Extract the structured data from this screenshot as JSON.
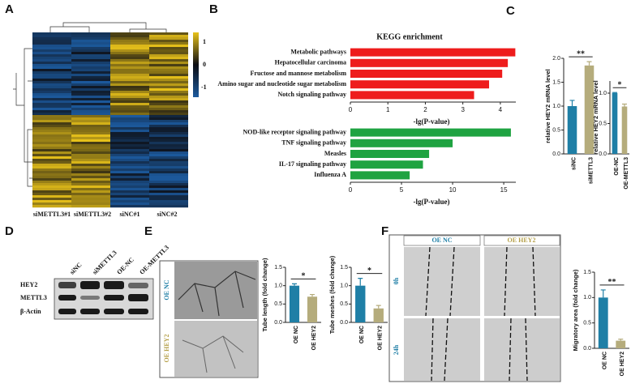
{
  "panels": [
    "A",
    "B",
    "C",
    "D",
    "E",
    "F"
  ],
  "heatmap": {
    "columns": [
      "siMETTL3#1",
      "siMETTL3#2",
      "siNC#1",
      "siNC#2"
    ],
    "colorbar_ticks": [
      1,
      0,
      -1
    ]
  },
  "blot": {
    "lanes": [
      "siNC",
      "siMETTL3",
      "OE-NC",
      "OE-METTL3"
    ],
    "proteins": [
      "HEY2",
      "METTL3",
      "β-Actin"
    ]
  },
  "tube_images": {
    "labels": [
      "OE NC",
      "OE HEY2"
    ]
  },
  "wound": {
    "columns": [
      "OE NC",
      "OE HEY2"
    ],
    "rows": [
      "0h",
      "24h"
    ]
  },
  "chart_data": [
    {
      "type": "hbar",
      "title": "KEGG enrichment",
      "categories": [
        "Metabolic pathways",
        "Hepatocellular carcinoma",
        "Fructose and mannose metabolism",
        "Amino sugar and nucleotide sugar metabolism",
        "Notch signaling pathway"
      ],
      "values": [
        4.4,
        4.2,
        4.05,
        3.7,
        3.3
      ],
      "color": "#ee1c1c",
      "xlim": [
        0,
        4.5
      ],
      "xticks": [
        0,
        1,
        2,
        3,
        4
      ],
      "x_label": "-lg(P-value)"
    },
    {
      "type": "hbar",
      "categories": [
        "NOD-like receptor signaling pathway",
        "TNF signaling pathway",
        "Measles",
        "IL-17 signaling pathway",
        "Influenza A"
      ],
      "values": [
        15.7,
        10,
        7.7,
        7.1,
        5.8
      ],
      "color": "#1fa341",
      "xlim": [
        0,
        16.5
      ],
      "xticks": [
        0,
        5,
        10,
        15
      ],
      "x_label": "-lg(P-value)"
    },
    {
      "type": "bar",
      "y_label": "relative HEY2 mRNA level",
      "categories": [
        "siNC",
        "siMETTL3"
      ],
      "values": [
        1.0,
        1.85
      ],
      "errors": [
        0.12,
        0.08
      ],
      "colors": [
        "#1f7fa6",
        "#b5ac7c"
      ],
      "ylim": [
        0,
        2.0
      ],
      "yticks": [
        {
          "value": 0,
          "label": "0.0"
        },
        0.5,
        {
          "value": 1,
          "label": "1.0"
        },
        1.5,
        {
          "value": 2,
          "label": "2.0"
        }
      ],
      "annotation": "**"
    },
    {
      "type": "bar",
      "y_label": "relative HEY2 mRNA level",
      "categories": [
        "OE-NC",
        "OE-METTL3"
      ],
      "values": [
        1.0,
        0.78
      ],
      "errors": [
        0.01,
        0.04
      ],
      "colors": [
        "#1f7fa6",
        "#b5ac7c"
      ],
      "ylim": [
        0,
        1.2
      ],
      "yticks": [
        {
          "value": 0,
          "label": "0.0"
        },
        0.5,
        {
          "value": 1,
          "label": "1.0"
        }
      ],
      "annotation": "*"
    },
    {
      "type": "bar",
      "y_label": "Tube length (fold change)",
      "categories": [
        "OE NC",
        "OE HEY2"
      ],
      "values": [
        1.0,
        0.7
      ],
      "errors": [
        0.05,
        0.06
      ],
      "colors": [
        "#1f7fa6",
        "#b5ac7c"
      ],
      "ylim": [
        0,
        1.5
      ],
      "yticks": [
        {
          "value": 0,
          "label": "0.0"
        },
        0.5,
        {
          "value": 1,
          "label": "1.0"
        },
        1.5
      ],
      "annotation": "*"
    },
    {
      "type": "bar",
      "y_label": "Tube meshes (fold change)",
      "categories": [
        "OE NC",
        "OE HEY2"
      ],
      "values": [
        1.0,
        0.38
      ],
      "errors": [
        0.2,
        0.08
      ],
      "colors": [
        "#1f7fa6",
        "#b5ac7c"
      ],
      "ylim": [
        0,
        1.5
      ],
      "yticks": [
        {
          "value": 0,
          "label": "0.0"
        },
        0.5,
        {
          "value": 1,
          "label": "1.0"
        },
        1.5
      ],
      "annotation": "*"
    },
    {
      "type": "bar",
      "y_label": "Migratory area (fold change)",
      "categories": [
        "OE NC",
        "OE HEY2"
      ],
      "values": [
        1.0,
        0.15
      ],
      "errors": [
        0.15,
        0.03
      ],
      "colors": [
        "#1f7fa6",
        "#b5ac7c"
      ],
      "ylim": [
        0,
        1.5
      ],
      "yticks": [
        {
          "value": 0,
          "label": "0.0"
        },
        0.5,
        {
          "value": 1,
          "label": "1.0"
        },
        1.5
      ],
      "annotation": "**"
    }
  ]
}
